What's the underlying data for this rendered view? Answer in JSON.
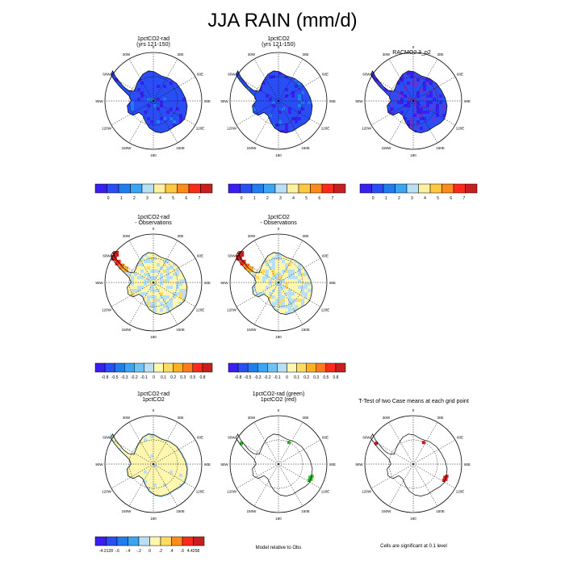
{
  "title": "JJA RAIN (mm/d)",
  "longitudes": [
    "0",
    "30E",
    "60E",
    "90E",
    "120E",
    "150E",
    "180",
    "150W",
    "120W",
    "90W",
    "60W",
    "30W"
  ],
  "panels": [
    {
      "id": "p1",
      "title1": "1pctCO2-rad",
      "title2": "(yrs 121-150)"
    },
    {
      "id": "p2",
      "title1": "1pctCO2",
      "title2": "(yrs 121-150)"
    },
    {
      "id": "p3",
      "title1": "RACMO2.3_p2",
      "title2": ""
    },
    {
      "id": "p4",
      "title1": "1pctCO2-rad",
      "title2": "- Observations"
    },
    {
      "id": "p5",
      "title1": "1pctCO2",
      "title2": "- Observations"
    },
    {
      "id": "p7",
      "title1": "1pctCO2-rad",
      "title2": "1pctCO2"
    },
    {
      "id": "p8",
      "title1": "1pctCO2-rad (green)",
      "title2": "1pctCO2 (red)"
    },
    {
      "id": "p9",
      "title1": "T-Test of two Case means at each grid point",
      "title2": ""
    }
  ],
  "colorbars": {
    "absolute": {
      "labels": [
        "0",
        "1",
        "2",
        "3",
        "4",
        "5",
        "6",
        "7"
      ],
      "colors": [
        "#3a1ff0",
        "#2a4ef5",
        "#1f7df0",
        "#3aa5f5",
        "#b8e0f5",
        "#fff1a0",
        "#ffc840",
        "#ff8c1a",
        "#ff2a1a",
        "#c81e1e"
      ]
    },
    "bias": {
      "labels": [
        "-0.8",
        "-0.5",
        "-0.3",
        "-0.2",
        "-0.1",
        "0",
        "0.1",
        "0.2",
        "0.3",
        "0.5",
        "0.8"
      ],
      "colors": [
        "#3a1ff0",
        "#2a4ef5",
        "#1f7df0",
        "#3aa5f5",
        "#6ec3f5",
        "#b8e0f5",
        "#fff6b0",
        "#ffdc60",
        "#ffb020",
        "#ff7a1a",
        "#ff2a1a",
        "#c81e1e"
      ]
    },
    "difference": {
      "labels": [
        "-4.2128",
        "-.6",
        "-.4",
        "-.2",
        "0",
        ".2",
        ".4",
        ".6",
        "4.4258"
      ],
      "colors": [
        "#3a1ff0",
        "#2a4ef5",
        "#1f7df0",
        "#3aa5f5",
        "#b8e0f5",
        "#fff6b0",
        "#ffdc60",
        "#ff8c1a",
        "#ff2a1a",
        "#c81e1e"
      ]
    }
  },
  "notes": {
    "model_relative": "Model relative to Obs",
    "significance": "Cells are significant at 0.1 level"
  },
  "chart_data": [
    {
      "type": "heatmap",
      "title": "1pctCO2-rad (yrs 121-150)",
      "projection": "south polar stereographic",
      "dominant_range": "0-1 mm/d",
      "colorbar": "absolute"
    },
    {
      "type": "heatmap",
      "title": "1pctCO2 (yrs 121-150)",
      "projection": "south polar stereographic",
      "dominant_range": "0-1 mm/d",
      "colorbar": "absolute"
    },
    {
      "type": "heatmap",
      "title": "RACMO2.3_p2",
      "projection": "south polar stereographic",
      "dominant_range": "0-1 mm/d",
      "colorbar": "absolute"
    },
    {
      "type": "heatmap",
      "title": "1pctCO2-rad - Observations",
      "dominant_range": "-0.1 to 0.1",
      "max_bias": "0.8 (Antarctic Peninsula)",
      "colorbar": "bias"
    },
    {
      "type": "heatmap",
      "title": "1pctCO2 - Observations",
      "dominant_range": "-0.1 to 0.1",
      "max_bias": "0.8 (Antarctic Peninsula)",
      "colorbar": "bias"
    },
    {
      "type": "heatmap",
      "title": "1pctCO2-rad 1pctCO2",
      "dominant_range": "0 to .2",
      "colorbar": "difference"
    },
    {
      "type": "heatmap",
      "title": "1pctCO2-rad (green) 1pctCO2 (red)"
    },
    {
      "type": "heatmap",
      "title": "T-Test of two Case means at each grid point"
    }
  ]
}
